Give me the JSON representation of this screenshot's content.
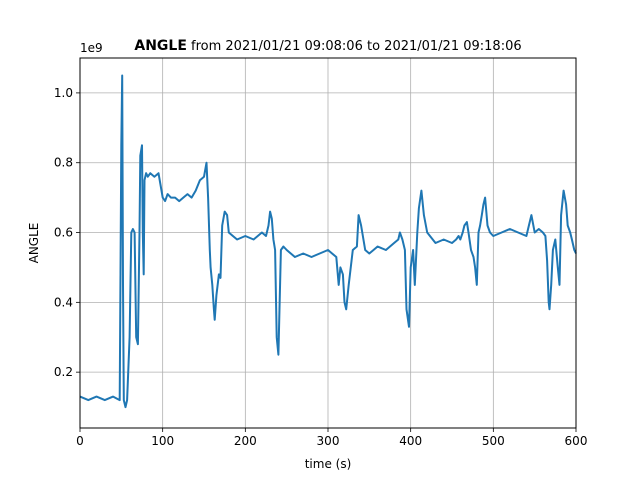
{
  "chart_data": {
    "type": "line",
    "title_bold": "ANGLE",
    "title_rest": " from 2021/01/21 09:08:06 to 2021/01/21 09:18:06",
    "xlabel": "time (s)",
    "ylabel": "ANGLE",
    "y_offset_label": "1e9",
    "xlim": [
      0,
      600
    ],
    "ylim": [
      0.04,
      1.1
    ],
    "x_ticks": [
      0,
      100,
      200,
      300,
      400,
      500,
      600
    ],
    "y_ticks": [
      0.2,
      0.4,
      0.6,
      0.8,
      1.0
    ],
    "x_tick_labels": [
      "0",
      "100",
      "200",
      "300",
      "400",
      "500",
      "600"
    ],
    "y_tick_labels": [
      "0.2",
      "0.4",
      "0.6",
      "0.8",
      "1.0"
    ],
    "grid": true,
    "line_color": "#1f77b4",
    "series": [
      {
        "x": [
          0,
          10,
          20,
          30,
          40,
          48,
          50,
          51,
          52,
          53,
          55,
          57,
          60,
          62,
          64,
          66,
          68,
          70,
          72,
          73,
          75,
          76,
          77,
          78,
          80,
          82,
          85,
          90,
          95,
          100,
          103,
          106,
          110,
          115,
          120,
          125,
          130,
          135,
          140,
          145,
          150,
          153,
          155,
          157,
          158,
          160,
          162,
          163,
          165,
          168,
          170,
          172,
          175,
          178,
          180,
          185,
          190,
          200,
          210,
          220,
          225,
          228,
          230,
          232,
          234,
          236,
          238,
          240,
          243,
          246,
          250,
          255,
          260,
          270,
          280,
          290,
          300,
          305,
          310,
          313,
          315,
          318,
          320,
          322,
          325,
          330,
          335,
          337,
          340,
          345,
          350,
          355,
          360,
          370,
          380,
          385,
          387,
          390,
          393,
          395,
          398,
          400,
          403,
          405,
          408,
          410,
          413,
          416,
          420,
          430,
          440,
          450,
          455,
          458,
          460,
          463,
          465,
          468,
          470,
          473,
          476,
          478,
          480,
          482,
          484,
          486,
          488,
          490,
          493,
          496,
          500,
          510,
          520,
          530,
          540,
          543,
          546,
          550,
          555,
          560,
          563,
          565,
          567,
          568,
          570,
          572,
          575,
          578,
          580,
          582,
          585,
          588,
          590,
          593,
          595,
          598,
          600
        ],
        "y": [
          0.13,
          0.12,
          0.13,
          0.12,
          0.13,
          0.12,
          0.85,
          1.05,
          0.45,
          0.12,
          0.1,
          0.12,
          0.3,
          0.6,
          0.61,
          0.6,
          0.3,
          0.28,
          0.6,
          0.82,
          0.85,
          0.6,
          0.48,
          0.75,
          0.77,
          0.76,
          0.77,
          0.76,
          0.77,
          0.7,
          0.69,
          0.71,
          0.7,
          0.7,
          0.69,
          0.7,
          0.71,
          0.7,
          0.72,
          0.75,
          0.76,
          0.8,
          0.7,
          0.55,
          0.5,
          0.45,
          0.38,
          0.35,
          0.42,
          0.48,
          0.47,
          0.62,
          0.66,
          0.65,
          0.6,
          0.59,
          0.58,
          0.59,
          0.58,
          0.6,
          0.59,
          0.62,
          0.66,
          0.64,
          0.58,
          0.55,
          0.3,
          0.25,
          0.55,
          0.56,
          0.55,
          0.54,
          0.53,
          0.54,
          0.53,
          0.54,
          0.55,
          0.54,
          0.53,
          0.45,
          0.5,
          0.48,
          0.4,
          0.38,
          0.45,
          0.55,
          0.56,
          0.65,
          0.62,
          0.55,
          0.54,
          0.55,
          0.56,
          0.55,
          0.57,
          0.58,
          0.6,
          0.58,
          0.55,
          0.38,
          0.33,
          0.5,
          0.55,
          0.45,
          0.6,
          0.67,
          0.72,
          0.65,
          0.6,
          0.57,
          0.58,
          0.57,
          0.58,
          0.59,
          0.58,
          0.6,
          0.62,
          0.63,
          0.6,
          0.55,
          0.53,
          0.5,
          0.45,
          0.6,
          0.62,
          0.65,
          0.68,
          0.7,
          0.62,
          0.6,
          0.59,
          0.6,
          0.61,
          0.6,
          0.59,
          0.62,
          0.65,
          0.6,
          0.61,
          0.6,
          0.59,
          0.52,
          0.4,
          0.38,
          0.45,
          0.55,
          0.58,
          0.5,
          0.45,
          0.65,
          0.72,
          0.68,
          0.62,
          0.6,
          0.58,
          0.55,
          0.54
        ]
      }
    ]
  }
}
